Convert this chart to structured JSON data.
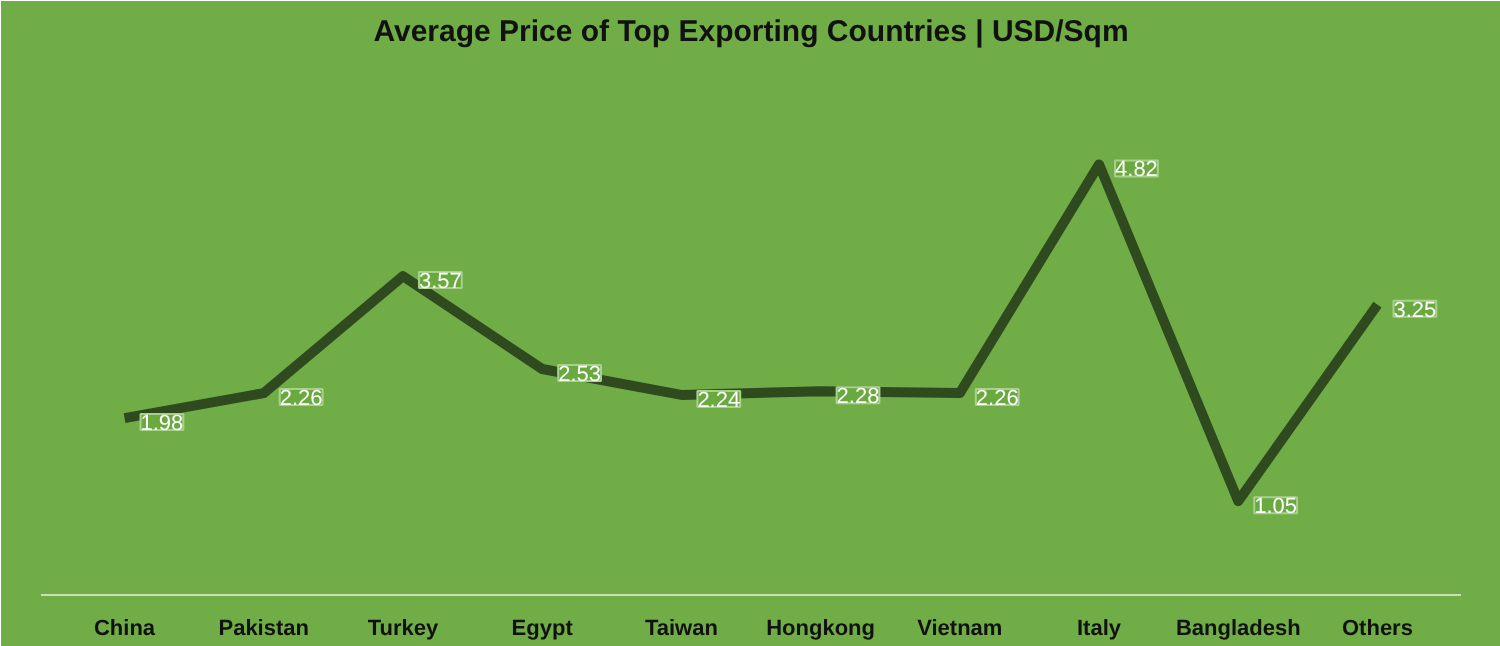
{
  "chart_data": {
    "type": "line",
    "title": "Average Price of Top Exporting Countries | USD/Sqm",
    "categories": [
      "China",
      "Pakistan",
      "Turkey",
      "Egypt",
      "Taiwan",
      "Hongkong",
      "Vietnam",
      "Italy",
      "Bangladesh",
      "Others"
    ],
    "series": [
      {
        "color": "#2f4a1f",
        "values": [
          1.98,
          2.26,
          3.57,
          2.53,
          2.24,
          2.28,
          2.26,
          4.82,
          1.05,
          3.25
        ]
      }
    ],
    "ylim": [
      0,
      6
    ],
    "data_labels": true,
    "tick_labels": "x",
    "marker": "none",
    "line_style": "solid"
  }
}
